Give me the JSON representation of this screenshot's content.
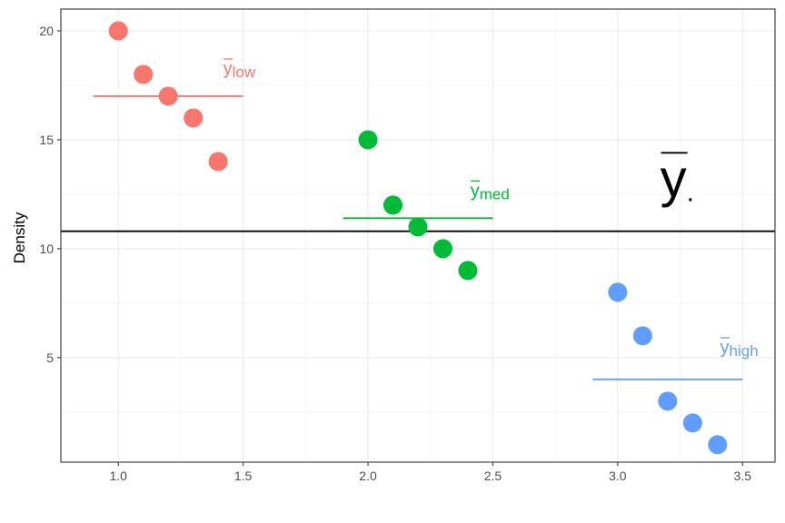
{
  "chart_data": {
    "type": "scatter",
    "title": "",
    "xlabel": "",
    "ylabel": "Density",
    "xlim": [
      0.77,
      3.63
    ],
    "ylim": [
      0.2,
      21.0
    ],
    "x_ticks": [
      "1.0",
      "1.5",
      "2.0",
      "2.5",
      "3.0",
      "3.5"
    ],
    "x_tick_values": [
      1.0,
      1.5,
      2.0,
      2.5,
      3.0,
      3.5
    ],
    "y_ticks": [
      "5",
      "10",
      "15",
      "20"
    ],
    "y_tick_values": [
      5,
      10,
      15,
      20
    ],
    "grid": true,
    "series": [
      {
        "color": "#F8766D",
        "x": [
          1.0,
          1.1,
          1.2,
          1.3,
          1.4
        ],
        "y": [
          20,
          18,
          17,
          16,
          14
        ],
        "mean": 17,
        "mean_x_range": [
          0.9,
          1.5
        ],
        "label_base": "y",
        "label_sub": "low",
        "label_at": [
          1.42,
          18.0
        ]
      },
      {
        "color": "#00BA38",
        "x": [
          2.0,
          2.1,
          2.2,
          2.3,
          2.4
        ],
        "y": [
          15,
          12,
          11,
          10,
          9
        ],
        "mean": 11.4,
        "mean_x_range": [
          1.9,
          2.5
        ],
        "label_base": "y",
        "label_sub": "med",
        "label_at": [
          2.41,
          12.4
        ]
      },
      {
        "color": "#619CFF",
        "x": [
          3.0,
          3.1,
          3.2,
          3.3,
          3.4
        ],
        "y": [
          8,
          6,
          3,
          2,
          1
        ],
        "mean": 4,
        "mean_x_range": [
          2.9,
          3.5
        ],
        "label_base": "y",
        "label_sub": "high",
        "label_at": [
          3.41,
          5.2
        ]
      }
    ],
    "grand_mean": {
      "y": 10.8,
      "color": "#000000",
      "label_base": "y",
      "label_sub": ".",
      "label_at": [
        3.17,
        12.4
      ]
    }
  }
}
